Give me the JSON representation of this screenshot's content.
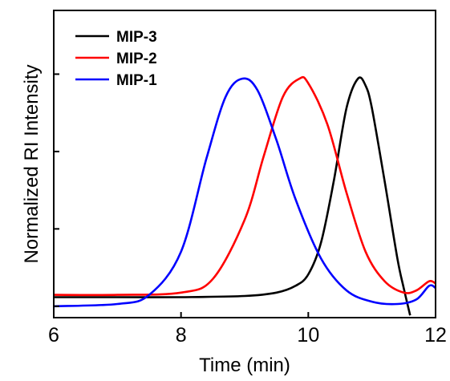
{
  "chart_data": {
    "type": "line",
    "xlabel": "Time (min)",
    "ylabel": "Normalized RI Intensity",
    "xlim": [
      6,
      12
    ],
    "ylim": [
      -0.05,
      1.3
    ],
    "x_ticks": [
      6,
      8,
      10,
      12
    ],
    "x_tick_labels": [
      "6",
      "8",
      "10",
      "12"
    ],
    "y_ticks": [
      0,
      0.34,
      0.68,
      1.02
    ],
    "y_tick_labels": [
      "",
      "",
      "",
      ""
    ],
    "legend_position": "top-left",
    "grid": false,
    "series": [
      {
        "name": "MIP-3",
        "color": "#000000",
        "x": [
          6.0,
          7.0,
          8.0,
          9.0,
          9.5,
          9.8,
          10.0,
          10.2,
          10.4,
          10.6,
          10.78,
          10.9,
          11.0,
          11.2,
          11.4,
          11.5,
          11.6
        ],
        "y": [
          0.04,
          0.04,
          0.04,
          0.045,
          0.06,
          0.09,
          0.14,
          0.28,
          0.55,
          0.87,
          1.0,
          0.97,
          0.87,
          0.55,
          0.21,
          0.08,
          -0.04
        ]
      },
      {
        "name": "MIP-2",
        "color": "#ff0000",
        "x": [
          6.0,
          7.0,
          8.0,
          8.5,
          9.0,
          9.3,
          9.6,
          9.86,
          10.0,
          10.3,
          10.6,
          10.9,
          11.2,
          11.5,
          11.7,
          11.9,
          12.0
        ],
        "y": [
          0.05,
          0.05,
          0.06,
          0.12,
          0.38,
          0.66,
          0.92,
          1.0,
          0.98,
          0.8,
          0.5,
          0.24,
          0.11,
          0.06,
          0.07,
          0.11,
          0.1
        ]
      },
      {
        "name": "MIP-1",
        "color": "#0000ff",
        "x": [
          6.0,
          7.0,
          7.5,
          8.0,
          8.4,
          8.7,
          8.96,
          9.2,
          9.5,
          9.8,
          10.2,
          10.6,
          11.0,
          11.4,
          11.7,
          11.9,
          12.0
        ],
        "y": [
          0.0,
          0.01,
          0.05,
          0.24,
          0.65,
          0.92,
          1.0,
          0.95,
          0.73,
          0.47,
          0.21,
          0.07,
          0.02,
          0.01,
          0.03,
          0.09,
          0.08
        ]
      }
    ]
  }
}
